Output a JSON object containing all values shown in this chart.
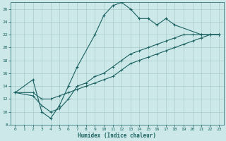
{
  "xlabel": "Humidex (Indice chaleur)",
  "ylabel": "",
  "xlim": [
    -0.5,
    23.5
  ],
  "ylim": [
    8,
    27
  ],
  "xticks": [
    0,
    1,
    2,
    3,
    4,
    5,
    6,
    7,
    8,
    9,
    10,
    11,
    12,
    13,
    14,
    15,
    16,
    17,
    18,
    19,
    20,
    21,
    22,
    23
  ],
  "yticks": [
    8,
    10,
    12,
    14,
    16,
    18,
    20,
    22,
    24,
    26
  ],
  "bg_color": "#cce8e8",
  "line_color": "#1a6060",
  "grid_color": "#aacccc",
  "line1_x": [
    0,
    2,
    3,
    4,
    5,
    6,
    7,
    9,
    10,
    11,
    12,
    13,
    14,
    15,
    16,
    17,
    18,
    21,
    22,
    23
  ],
  "line1_y": [
    13,
    15,
    10,
    9,
    11,
    14,
    17,
    22,
    25,
    26.5,
    27,
    26,
    24.5,
    24.5,
    23.5,
    24.5,
    23.5,
    22,
    22,
    22
  ],
  "line1_markers": true,
  "line2_x": [
    0,
    2,
    3,
    4,
    5,
    6,
    7,
    8,
    9,
    10,
    11,
    12,
    13,
    14,
    15,
    16,
    17,
    18,
    19,
    20,
    21,
    22,
    23
  ],
  "line2_y": [
    13,
    13,
    12,
    12,
    12.5,
    13,
    13.5,
    14,
    14.5,
    15,
    15.5,
    16.5,
    17.5,
    18,
    18.5,
    19,
    19.5,
    20,
    20.5,
    21,
    21.5,
    22,
    22
  ],
  "line2_markers": false,
  "line3_x": [
    0,
    2,
    3,
    4,
    5,
    6,
    7,
    8,
    9,
    10,
    11,
    12,
    13,
    14,
    15,
    16,
    17,
    18,
    19,
    20,
    21,
    22,
    23
  ],
  "line3_y": [
    13,
    12.5,
    11,
    10,
    10.5,
    12,
    14,
    14.5,
    15.5,
    16,
    17,
    18,
    19,
    19.5,
    20,
    20.5,
    21,
    21.5,
    22,
    22,
    22,
    22,
    22
  ],
  "line3_markers": false
}
